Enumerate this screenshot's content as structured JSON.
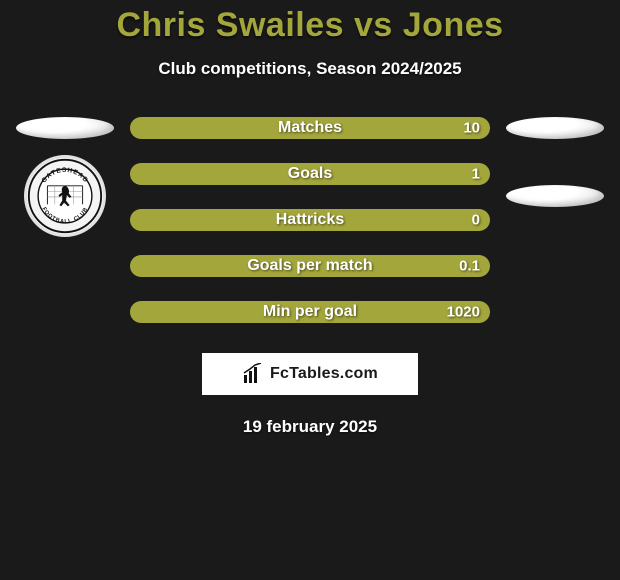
{
  "title": "Chris Swailes vs Jones",
  "subtitle": "Club competitions, Season 2024/2025",
  "date": "19 february 2025",
  "brand": "FcTables.com",
  "colors": {
    "bar_fill": "#a3a63b",
    "bar_empty": "#1a1a1a",
    "title": "#a3a63b",
    "text": "#ffffff",
    "background": "#1a1a1a",
    "brand_bg": "#ffffff"
  },
  "left": {
    "club_name": "Gateshead Football Club"
  },
  "right": {
    "club_name": ""
  },
  "stats": [
    {
      "label": "Matches",
      "value": "10",
      "fill_pct": 100
    },
    {
      "label": "Goals",
      "value": "1",
      "fill_pct": 100
    },
    {
      "label": "Hattricks",
      "value": "0",
      "fill_pct": 100
    },
    {
      "label": "Goals per match",
      "value": "0.1",
      "fill_pct": 100
    },
    {
      "label": "Min per goal",
      "value": "1020",
      "fill_pct": 100
    }
  ]
}
